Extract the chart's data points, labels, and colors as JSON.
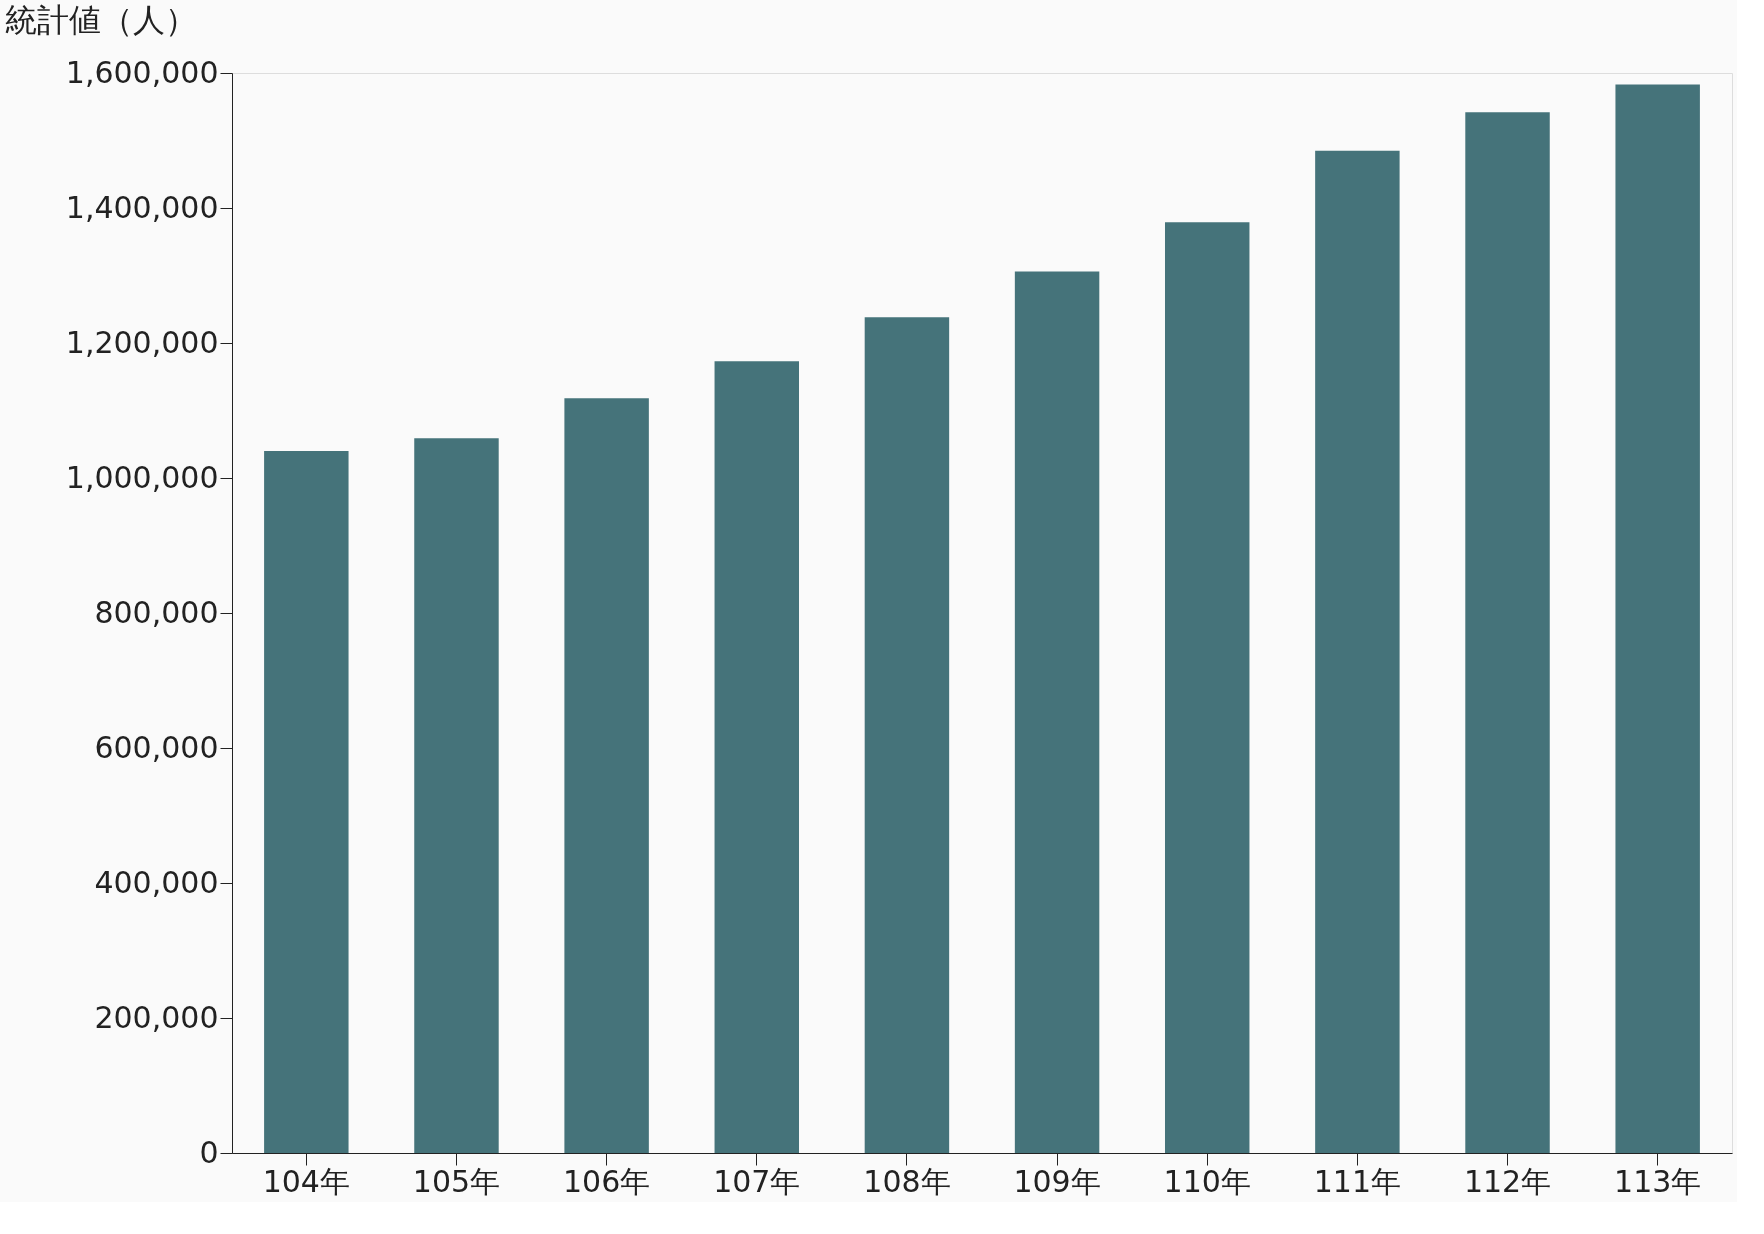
{
  "chart_data": {
    "type": "bar",
    "ylabel": "統計値（人）",
    "categories": [
      "104年",
      "105年",
      "106年",
      "107年",
      "108年",
      "109年",
      "110年",
      "111年",
      "112年",
      "113年"
    ],
    "values": [
      1040000,
      1059000,
      1118000,
      1173000,
      1238000,
      1306000,
      1379000,
      1485000,
      1542000,
      1583000
    ],
    "color": "#45737a",
    "ylim": [
      0,
      1600000
    ],
    "yticks": [
      0,
      {
        "value": 200000,
        "label": "200,000"
      },
      {
        "value": 400000,
        "label": "400,000"
      },
      {
        "value": 600000,
        "label": "600,000"
      },
      {
        "value": 800000,
        "label": "800,000"
      },
      {
        "value": 1000000,
        "label": "1,000,000"
      },
      {
        "value": 1200000,
        "label": "1,200,000"
      },
      {
        "value": 1400000,
        "label": "1,400,000"
      },
      {
        "value": 1600000,
        "label": "1,600,000"
      }
    ],
    "grid": false
  }
}
